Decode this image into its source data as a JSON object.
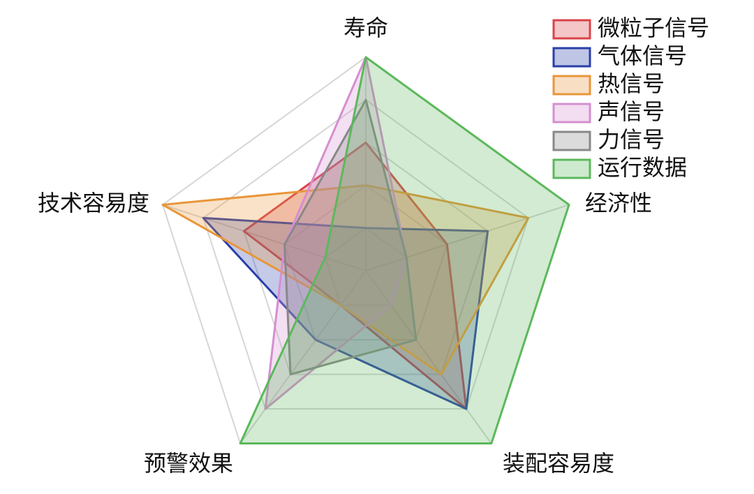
{
  "chart_data": {
    "type": "radar",
    "categories": [
      "寿命",
      "经济性",
      "装配容易度",
      "预警效果",
      "技术容易度"
    ],
    "rlim": [
      0,
      5
    ],
    "rticks": [
      1,
      2,
      3,
      4,
      5
    ],
    "grid": true,
    "legend": "upper right",
    "series": [
      {
        "name": "微粒子信号",
        "color": "#d9434a",
        "values": [
          3,
          2,
          4,
          1,
          3
        ]
      },
      {
        "name": "气体信号",
        "color": "#2a3fa8",
        "values": [
          1,
          3,
          4,
          2,
          4
        ]
      },
      {
        "name": "热信号",
        "color": "#e8963a",
        "values": [
          2,
          4,
          3,
          1,
          5
        ]
      },
      {
        "name": "声信号",
        "color": "#d58fcf",
        "values": [
          5,
          1,
          1,
          4,
          2
        ]
      },
      {
        "name": "力信号",
        "color": "#888888",
        "values": [
          4,
          1,
          2,
          3,
          2
        ]
      },
      {
        "name": "运行数据",
        "color": "#5cb85c",
        "values": [
          5,
          5,
          5,
          5,
          1
        ]
      }
    ]
  }
}
